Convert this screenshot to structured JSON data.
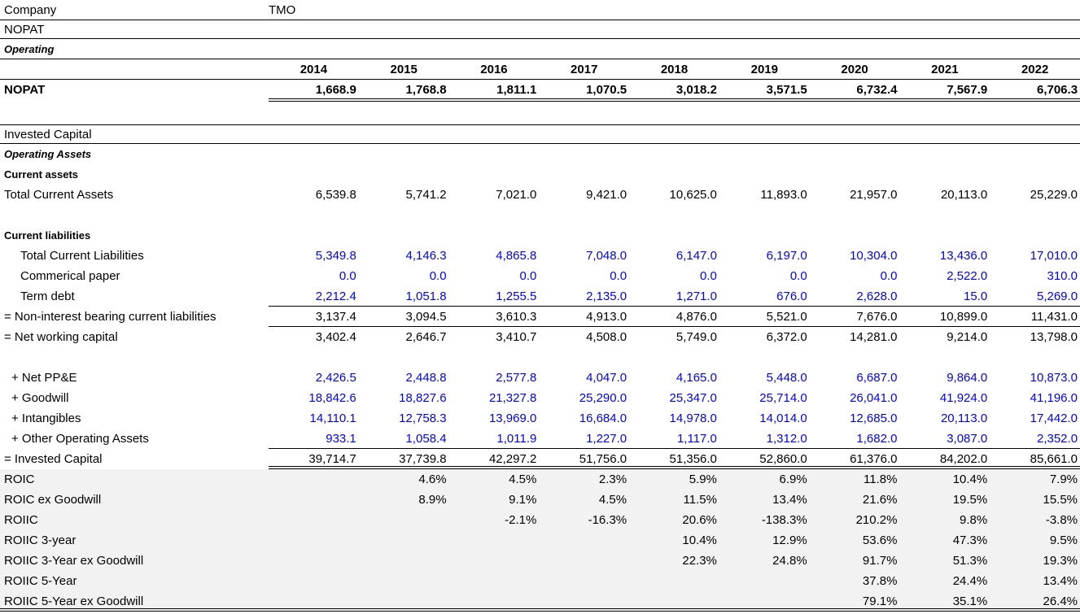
{
  "colors": {
    "input_value_blue": "#0000FF",
    "highlight_band_gray": "#F2F2F2",
    "grid_line": "#000000"
  },
  "table": {
    "rows": [
      {
        "kind": "company",
        "name": "company-row",
        "label": "Company",
        "value": "TMO",
        "rule": "b"
      },
      {
        "kind": "title",
        "name": "nopat-section-title",
        "label": "NOPAT",
        "rule": "b"
      },
      {
        "kind": "subtitle-italic",
        "name": "operating-subtitle",
        "label": "Operating",
        "rule": "b"
      },
      {
        "kind": "years",
        "name": "year-header-row",
        "label": "",
        "values": [
          "2014",
          "2015",
          "2016",
          "2017",
          "2018",
          "2019",
          "2020",
          "2021",
          "2022"
        ],
        "rule": "b"
      },
      {
        "kind": "data-bold",
        "name": "nopat-row",
        "label": "NOPAT",
        "values": [
          "1,668.9",
          "1,768.8",
          "1,811.1",
          "1,070.5",
          "3,018.2",
          "3,571.5",
          "6,732.4",
          "7,567.9",
          "6,706.3"
        ],
        "rule": "vals-db"
      },
      {
        "kind": "spacer-lg",
        "name": "spacer"
      },
      {
        "kind": "band",
        "name": "invested-capital-section-title",
        "label": "Invested Capital",
        "rule": "tb"
      },
      {
        "kind": "subtitle-italic",
        "name": "operating-assets-subtitle",
        "label": "Operating Assets"
      },
      {
        "kind": "subtitle-bold",
        "name": "current-assets-subtitle",
        "label": "Current assets"
      },
      {
        "kind": "data",
        "name": "total-current-assets-row",
        "label": "Total Current Assets",
        "values": [
          "6,539.8",
          "5,741.2",
          "7,021.0",
          "9,421.0",
          "10,625.0",
          "11,893.0",
          "21,957.0",
          "20,113.0",
          "25,229.0"
        ]
      },
      {
        "kind": "spacer",
        "name": "spacer"
      },
      {
        "kind": "subtitle-bold",
        "name": "current-liabilities-subtitle",
        "label": "Current liabilities"
      },
      {
        "kind": "data-blue",
        "name": "total-current-liabilities-row",
        "indent": 2,
        "label": "Total Current Liabilities",
        "values": [
          "5,349.8",
          "4,146.3",
          "4,865.8",
          "7,048.0",
          "6,147.0",
          "6,197.0",
          "10,304.0",
          "13,436.0",
          "17,010.0"
        ]
      },
      {
        "kind": "data-blue",
        "name": "commercial-paper-row",
        "indent": 2,
        "label": "Commerical paper",
        "values": [
          "0.0",
          "0.0",
          "0.0",
          "0.0",
          "0.0",
          "0.0",
          "0.0",
          "2,522.0",
          "310.0"
        ]
      },
      {
        "kind": "data-blue",
        "name": "term-debt-row",
        "indent": 2,
        "label": "Term debt",
        "values": [
          "2,212.4",
          "1,051.8",
          "1,255.5",
          "2,135.0",
          "1,271.0",
          "676.0",
          "2,628.0",
          "15.0",
          "5,269.0"
        ],
        "rule": "vals-b"
      },
      {
        "kind": "data",
        "name": "non-interest-bearing-current-liabilities-row",
        "label": "= Non-interest bearing current liabilities",
        "values": [
          "3,137.4",
          "3,094.5",
          "3,610.3",
          "4,913.0",
          "4,876.0",
          "5,521.0",
          "7,676.0",
          "10,899.0",
          "11,431.0"
        ],
        "rule": "vals-b"
      },
      {
        "kind": "data",
        "name": "net-working-capital-row",
        "label": "= Net working capital",
        "values": [
          "3,402.4",
          "2,646.7",
          "3,410.7",
          "4,508.0",
          "5,749.0",
          "6,372.0",
          "14,281.0",
          "9,214.0",
          "13,798.0"
        ]
      },
      {
        "kind": "spacer",
        "name": "spacer"
      },
      {
        "kind": "data-blue",
        "name": "net-ppe-row",
        "indent": 1,
        "label": "+ Net PP&E",
        "values": [
          "2,426.5",
          "2,448.8",
          "2,577.8",
          "4,047.0",
          "4,165.0",
          "5,448.0",
          "6,687.0",
          "9,864.0",
          "10,873.0"
        ]
      },
      {
        "kind": "data-blue",
        "name": "goodwill-row",
        "indent": 1,
        "label": "+ Goodwill",
        "values": [
          "18,842.6",
          "18,827.6",
          "21,327.8",
          "25,290.0",
          "25,347.0",
          "25,714.0",
          "26,041.0",
          "41,924.0",
          "41,196.0"
        ]
      },
      {
        "kind": "data-blue",
        "name": "intangibles-row",
        "indent": 1,
        "label": "+ Intangibles",
        "values": [
          "14,110.1",
          "12,758.3",
          "13,969.0",
          "16,684.0",
          "14,978.0",
          "14,014.0",
          "12,685.0",
          "20,113.0",
          "17,442.0"
        ]
      },
      {
        "kind": "data-blue",
        "name": "other-operating-assets-row",
        "indent": 1,
        "label": "+ Other Operating Assets",
        "values": [
          "933.1",
          "1,058.4",
          "1,011.9",
          "1,227.0",
          "1,117.0",
          "1,312.0",
          "1,682.0",
          "3,087.0",
          "2,352.0"
        ],
        "rule": "vals-b"
      },
      {
        "kind": "data",
        "name": "invested-capital-row",
        "label": "= Invested Capital",
        "values": [
          "39,714.7",
          "37,739.8",
          "42,297.2",
          "51,756.0",
          "51,356.0",
          "52,860.0",
          "61,376.0",
          "84,202.0",
          "85,661.0"
        ],
        "rule": "vals-db"
      },
      {
        "kind": "data",
        "name": "roic-row",
        "gray": true,
        "label": "ROIC",
        "values": [
          "",
          "4.6%",
          "4.5%",
          "2.3%",
          "5.9%",
          "6.9%",
          "11.8%",
          "10.4%",
          "7.9%"
        ]
      },
      {
        "kind": "data",
        "name": "roic-ex-goodwill-row",
        "gray": true,
        "label": "ROIC ex Goodwill",
        "values": [
          "",
          "8.9%",
          "9.1%",
          "4.5%",
          "11.5%",
          "13.4%",
          "21.6%",
          "19.5%",
          "15.5%"
        ]
      },
      {
        "kind": "data",
        "name": "roiic-row",
        "gray": true,
        "label": "ROIIC",
        "values": [
          "",
          "",
          "-2.1%",
          "-16.3%",
          "20.6%",
          "-138.3%",
          "210.2%",
          "9.8%",
          "-3.8%"
        ]
      },
      {
        "kind": "data",
        "name": "roiic-3-year-row",
        "gray": true,
        "label": "ROIIC 3-year",
        "values": [
          "",
          "",
          "",
          "",
          "10.4%",
          "12.9%",
          "53.6%",
          "47.3%",
          "9.5%"
        ]
      },
      {
        "kind": "data",
        "name": "roiic-3-year-ex-goodwill-row",
        "gray": true,
        "label": "ROIIC 3-Year ex Goodwill",
        "values": [
          "",
          "",
          "",
          "",
          "22.3%",
          "24.8%",
          "91.7%",
          "51.3%",
          "19.3%"
        ]
      },
      {
        "kind": "data",
        "name": "roiic-5-year-row",
        "gray": true,
        "label": "ROIIC 5-Year",
        "values": [
          "",
          "",
          "",
          "",
          "",
          "",
          "37.8%",
          "24.4%",
          "13.4%"
        ]
      },
      {
        "kind": "data",
        "name": "roiic-5-year-ex-goodwill-row",
        "gray": true,
        "label": "ROIIC 5-Year ex Goodwill",
        "values": [
          "",
          "",
          "",
          "",
          "",
          "",
          "79.1%",
          "35.1%",
          "26.4%"
        ],
        "rule": "db-full"
      }
    ]
  }
}
